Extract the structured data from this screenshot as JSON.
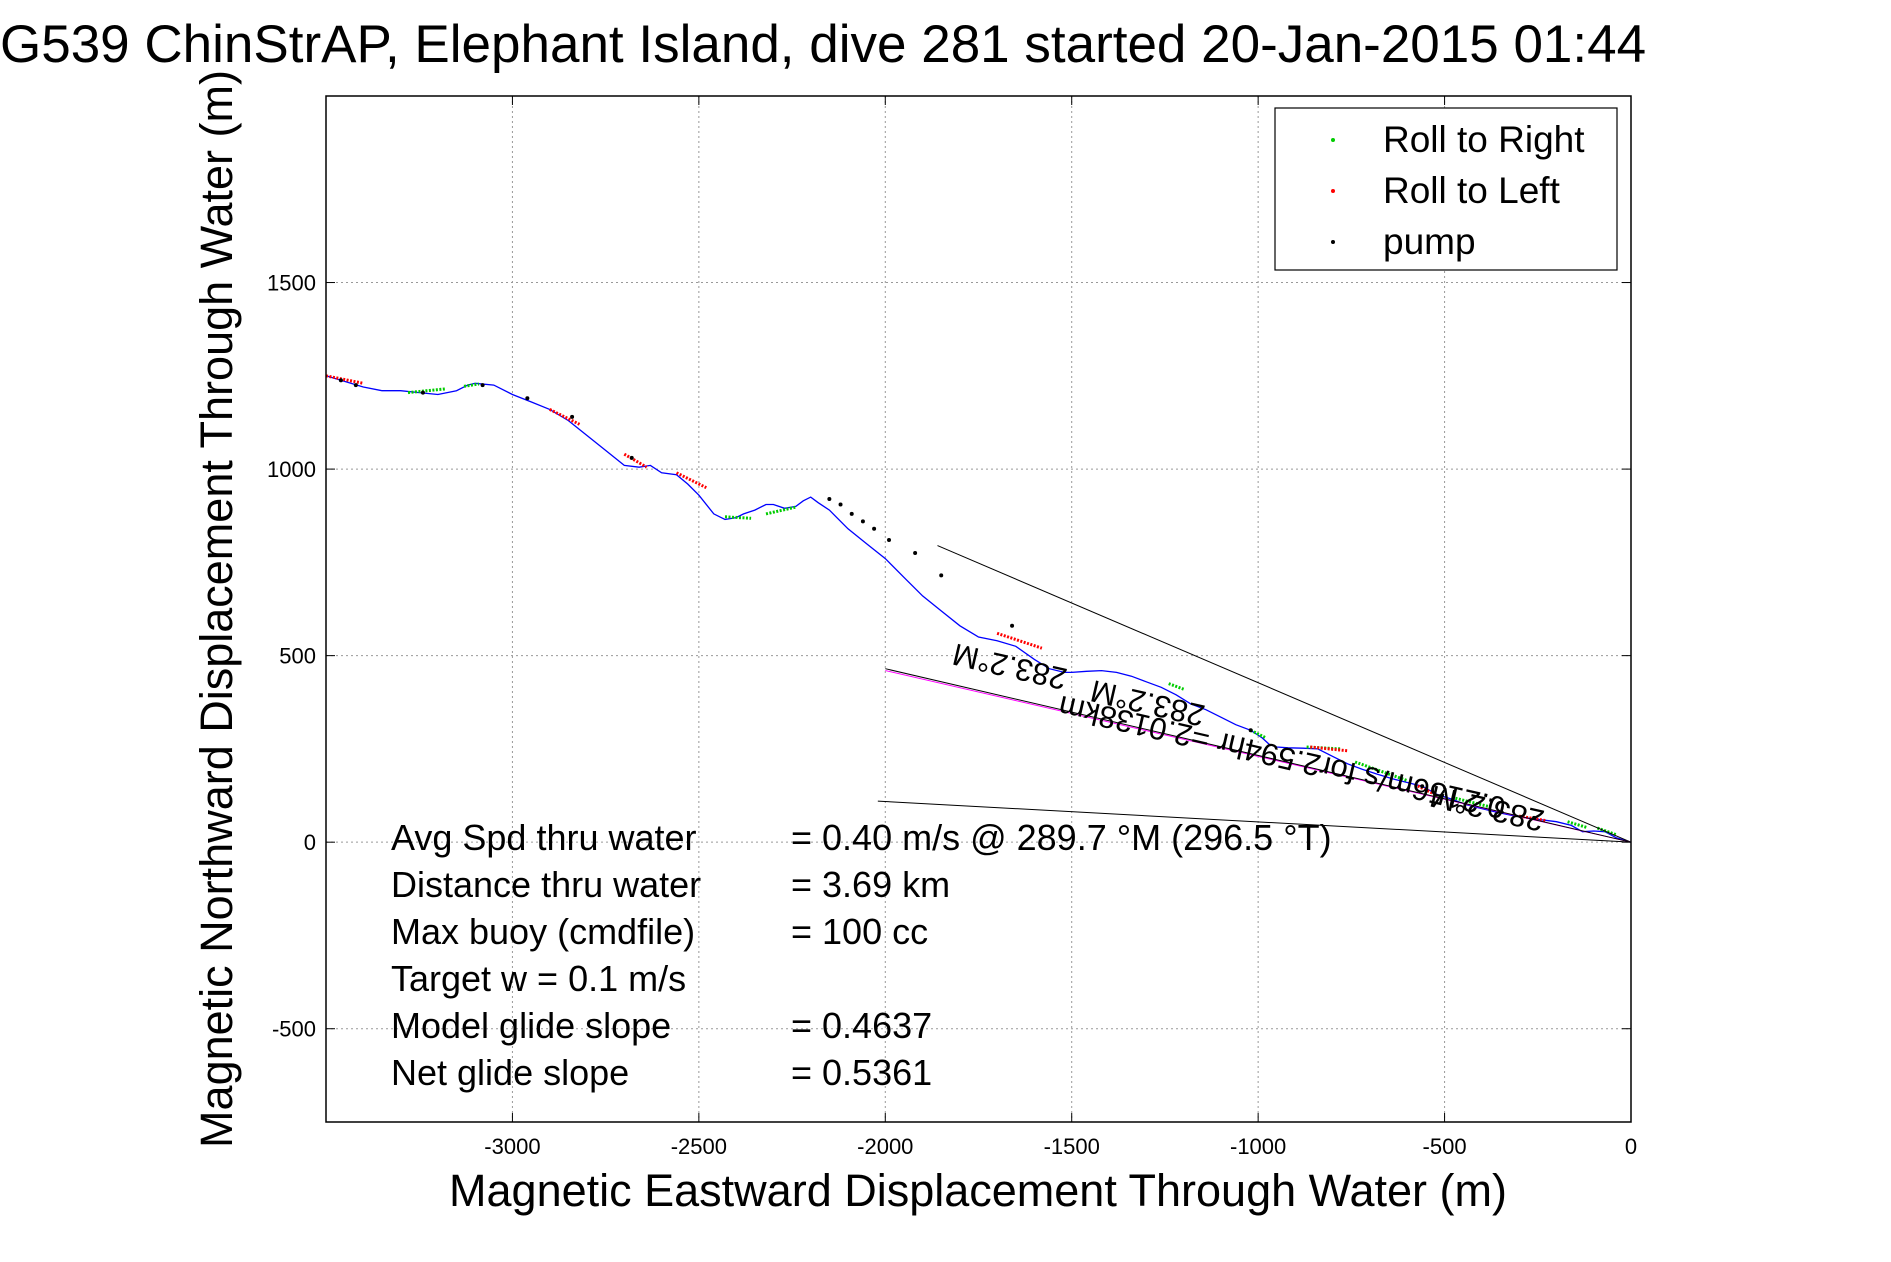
{
  "chart_data": {
    "type": "scatter",
    "title": "G539 ChinStrAP, Elephant Island, dive 281 started 20-Jan-2015 01:44",
    "xlabel": "Magnetic Eastward Displacement Through Water (m)",
    "ylabel": "Magnetic Northward Displacement Through Water (m)",
    "xlim": [
      -3500,
      0
    ],
    "ylim": [
      -750,
      2000
    ],
    "grid": true,
    "legend_position": "top-right",
    "x_ticks": [
      -3000,
      -2500,
      -2000,
      -1500,
      -1000,
      -500,
      0
    ],
    "x_tick_labels": [
      "-3000",
      "-2500",
      "-2000",
      "-1500",
      "-1000",
      "-500",
      "0"
    ],
    "y_ticks": [
      -500,
      0,
      500,
      1000,
      1500
    ],
    "y_tick_labels": [
      "-500",
      "0",
      "500",
      "1000",
      "1500"
    ],
    "legend": [
      {
        "label": "Roll to Right",
        "color": "#00cc00"
      },
      {
        "label": "Roll to Left",
        "color": "#ff0000"
      },
      {
        "label": "pump",
        "color": "#000000"
      }
    ],
    "track": {
      "color": "#0000ff",
      "x": [
        -3500,
        -3450,
        -3400,
        -3350,
        -3300,
        -3250,
        -3200,
        -3150,
        -3120,
        -3100,
        -3050,
        -3000,
        -2950,
        -2900,
        -2850,
        -2800,
        -2750,
        -2700,
        -2660,
        -2630,
        -2600,
        -2560,
        -2530,
        -2500,
        -2460,
        -2430,
        -2400,
        -2380,
        -2350,
        -2320,
        -2300,
        -2270,
        -2240,
        -2220,
        -2200,
        -2180,
        -2150,
        -2130,
        -2100,
        -2050,
        -2000,
        -1950,
        -1900,
        -1850,
        -1800,
        -1750,
        -1700,
        -1650,
        -1600,
        -1560,
        -1520,
        -1500,
        -1460,
        -1420,
        -1380,
        -1340,
        -1300,
        -1260,
        -1220,
        -1180,
        -1140,
        -1100,
        -1060,
        -1020,
        -990,
        -970,
        -950,
        -920,
        -880,
        -840,
        -800,
        -760,
        -720,
        -680,
        -640,
        -600,
        -560,
        -520,
        -480,
        -440,
        -400,
        -360,
        -320,
        -280,
        -240,
        -200,
        -160,
        -130,
        -100,
        -70,
        -40,
        -20,
        0
      ],
      "y": [
        1250,
        1235,
        1220,
        1210,
        1210,
        1205,
        1200,
        1210,
        1225,
        1230,
        1225,
        1200,
        1180,
        1160,
        1130,
        1090,
        1050,
        1010,
        1005,
        1010,
        990,
        985,
        960,
        930,
        880,
        865,
        870,
        880,
        890,
        905,
        905,
        895,
        900,
        915,
        925,
        910,
        890,
        870,
        840,
        800,
        760,
        710,
        660,
        620,
        580,
        550,
        540,
        525,
        490,
        465,
        455,
        455,
        458,
        460,
        455,
        445,
        430,
        415,
        395,
        370,
        355,
        335,
        315,
        300,
        280,
        262,
        255,
        253,
        252,
        250,
        230,
        210,
        195,
        182,
        170,
        160,
        150,
        128,
        115,
        100,
        90,
        80,
        72,
        65,
        60,
        55,
        45,
        28,
        30,
        28,
        12,
        6,
        0
      ]
    },
    "roll_right_segments": [
      {
        "x": [
          -3280,
          -3180
        ],
        "y": [
          1205,
          1215
        ]
      },
      {
        "x": [
          -3130,
          -3090
        ],
        "y": [
          1222,
          1228
        ]
      },
      {
        "x": [
          -2430,
          -2360
        ],
        "y": [
          872,
          868
        ]
      },
      {
        "x": [
          -2320,
          -2240
        ],
        "y": [
          880,
          898
        ]
      },
      {
        "x": [
          -1240,
          -1200
        ],
        "y": [
          425,
          410
        ]
      },
      {
        "x": [
          -1020,
          -980
        ],
        "y": [
          300,
          280
        ]
      },
      {
        "x": [
          -870,
          -780
        ],
        "y": [
          255,
          250
        ]
      },
      {
        "x": [
          -740,
          -600
        ],
        "y": [
          215,
          165
        ]
      },
      {
        "x": [
          -480,
          -380
        ],
        "y": [
          120,
          95
        ]
      },
      {
        "x": [
          -170,
          -120
        ],
        "y": [
          55,
          40
        ]
      },
      {
        "x": [
          -90,
          -40
        ],
        "y": [
          38,
          20
        ]
      }
    ],
    "roll_left_segments": [
      {
        "x": [
          -3500,
          -3400
        ],
        "y": [
          1250,
          1230
        ]
      },
      {
        "x": [
          -2900,
          -2820
        ],
        "y": [
          1160,
          1120
        ]
      },
      {
        "x": [
          -2700,
          -2640
        ],
        "y": [
          1040,
          1005
        ]
      },
      {
        "x": [
          -2560,
          -2480
        ],
        "y": [
          990,
          950
        ]
      },
      {
        "x": [
          -1700,
          -1580
        ],
        "y": [
          560,
          520
        ]
      },
      {
        "x": [
          -860,
          -760
        ],
        "y": [
          255,
          245
        ]
      },
      {
        "x": [
          -580,
          -520
        ],
        "y": [
          155,
          125
        ]
      },
      {
        "x": [
          -300,
          -230
        ],
        "y": [
          70,
          58
        ]
      }
    ],
    "pump_points": {
      "x": [
        -3460,
        -3420,
        -3240,
        -3080,
        -2960,
        -2840,
        -2680,
        -2150,
        -2120,
        -2090,
        -2060,
        -2030,
        -1990,
        -1920,
        -1850,
        -1660,
        -1020,
        -560,
        -260
      ],
      "y": [
        1238,
        1225,
        1205,
        1225,
        1190,
        1140,
        1030,
        920,
        905,
        880,
        860,
        840,
        810,
        775,
        715,
        580,
        300,
        150,
        65
      ]
    },
    "lines": [
      {
        "color": "#000000",
        "x": [
          -1860,
          0
        ],
        "y": [
          795,
          0
        ]
      },
      {
        "color": "#000000",
        "x": [
          -2020,
          0
        ],
        "y": [
          110,
          0
        ]
      },
      {
        "color": "#ff00ff",
        "x": [
          -2000,
          0
        ],
        "y": [
          460,
          0
        ]
      },
      {
        "color": "#000000",
        "x": [
          -2000,
          0
        ],
        "y": [
          465,
          0
        ]
      }
    ],
    "annotations": [
      {
        "text": "0.2156m/s for2.594hr =2.0138km",
        "x": -930,
        "y": 255,
        "rotation": 193
      },
      {
        "text": "283.2°M",
        "x": -1660,
        "y": 498,
        "rotation": 193
      },
      {
        "text": "283.2°M",
        "x": -1290,
        "y": 400,
        "rotation": 193
      },
      {
        "text": "283.2°M",
        "x": -380,
        "y": 118,
        "rotation": 193
      }
    ],
    "stats": [
      {
        "label": "Avg Spd thru water",
        "value": "=  0.40 m/s @ 289.7 °M (296.5 °T)"
      },
      {
        "label": "Distance thru water",
        "value": "=  3.69 km"
      },
      {
        "label": "Max buoy (cmdfile)",
        "value": "= 100 cc"
      },
      {
        "label": "Target w    = 0.1 m/s",
        "value": ""
      },
      {
        "label": "Model glide slope",
        "value": "= 0.4637"
      },
      {
        "label": "Net glide slope",
        "value": "= 0.5361"
      }
    ]
  }
}
